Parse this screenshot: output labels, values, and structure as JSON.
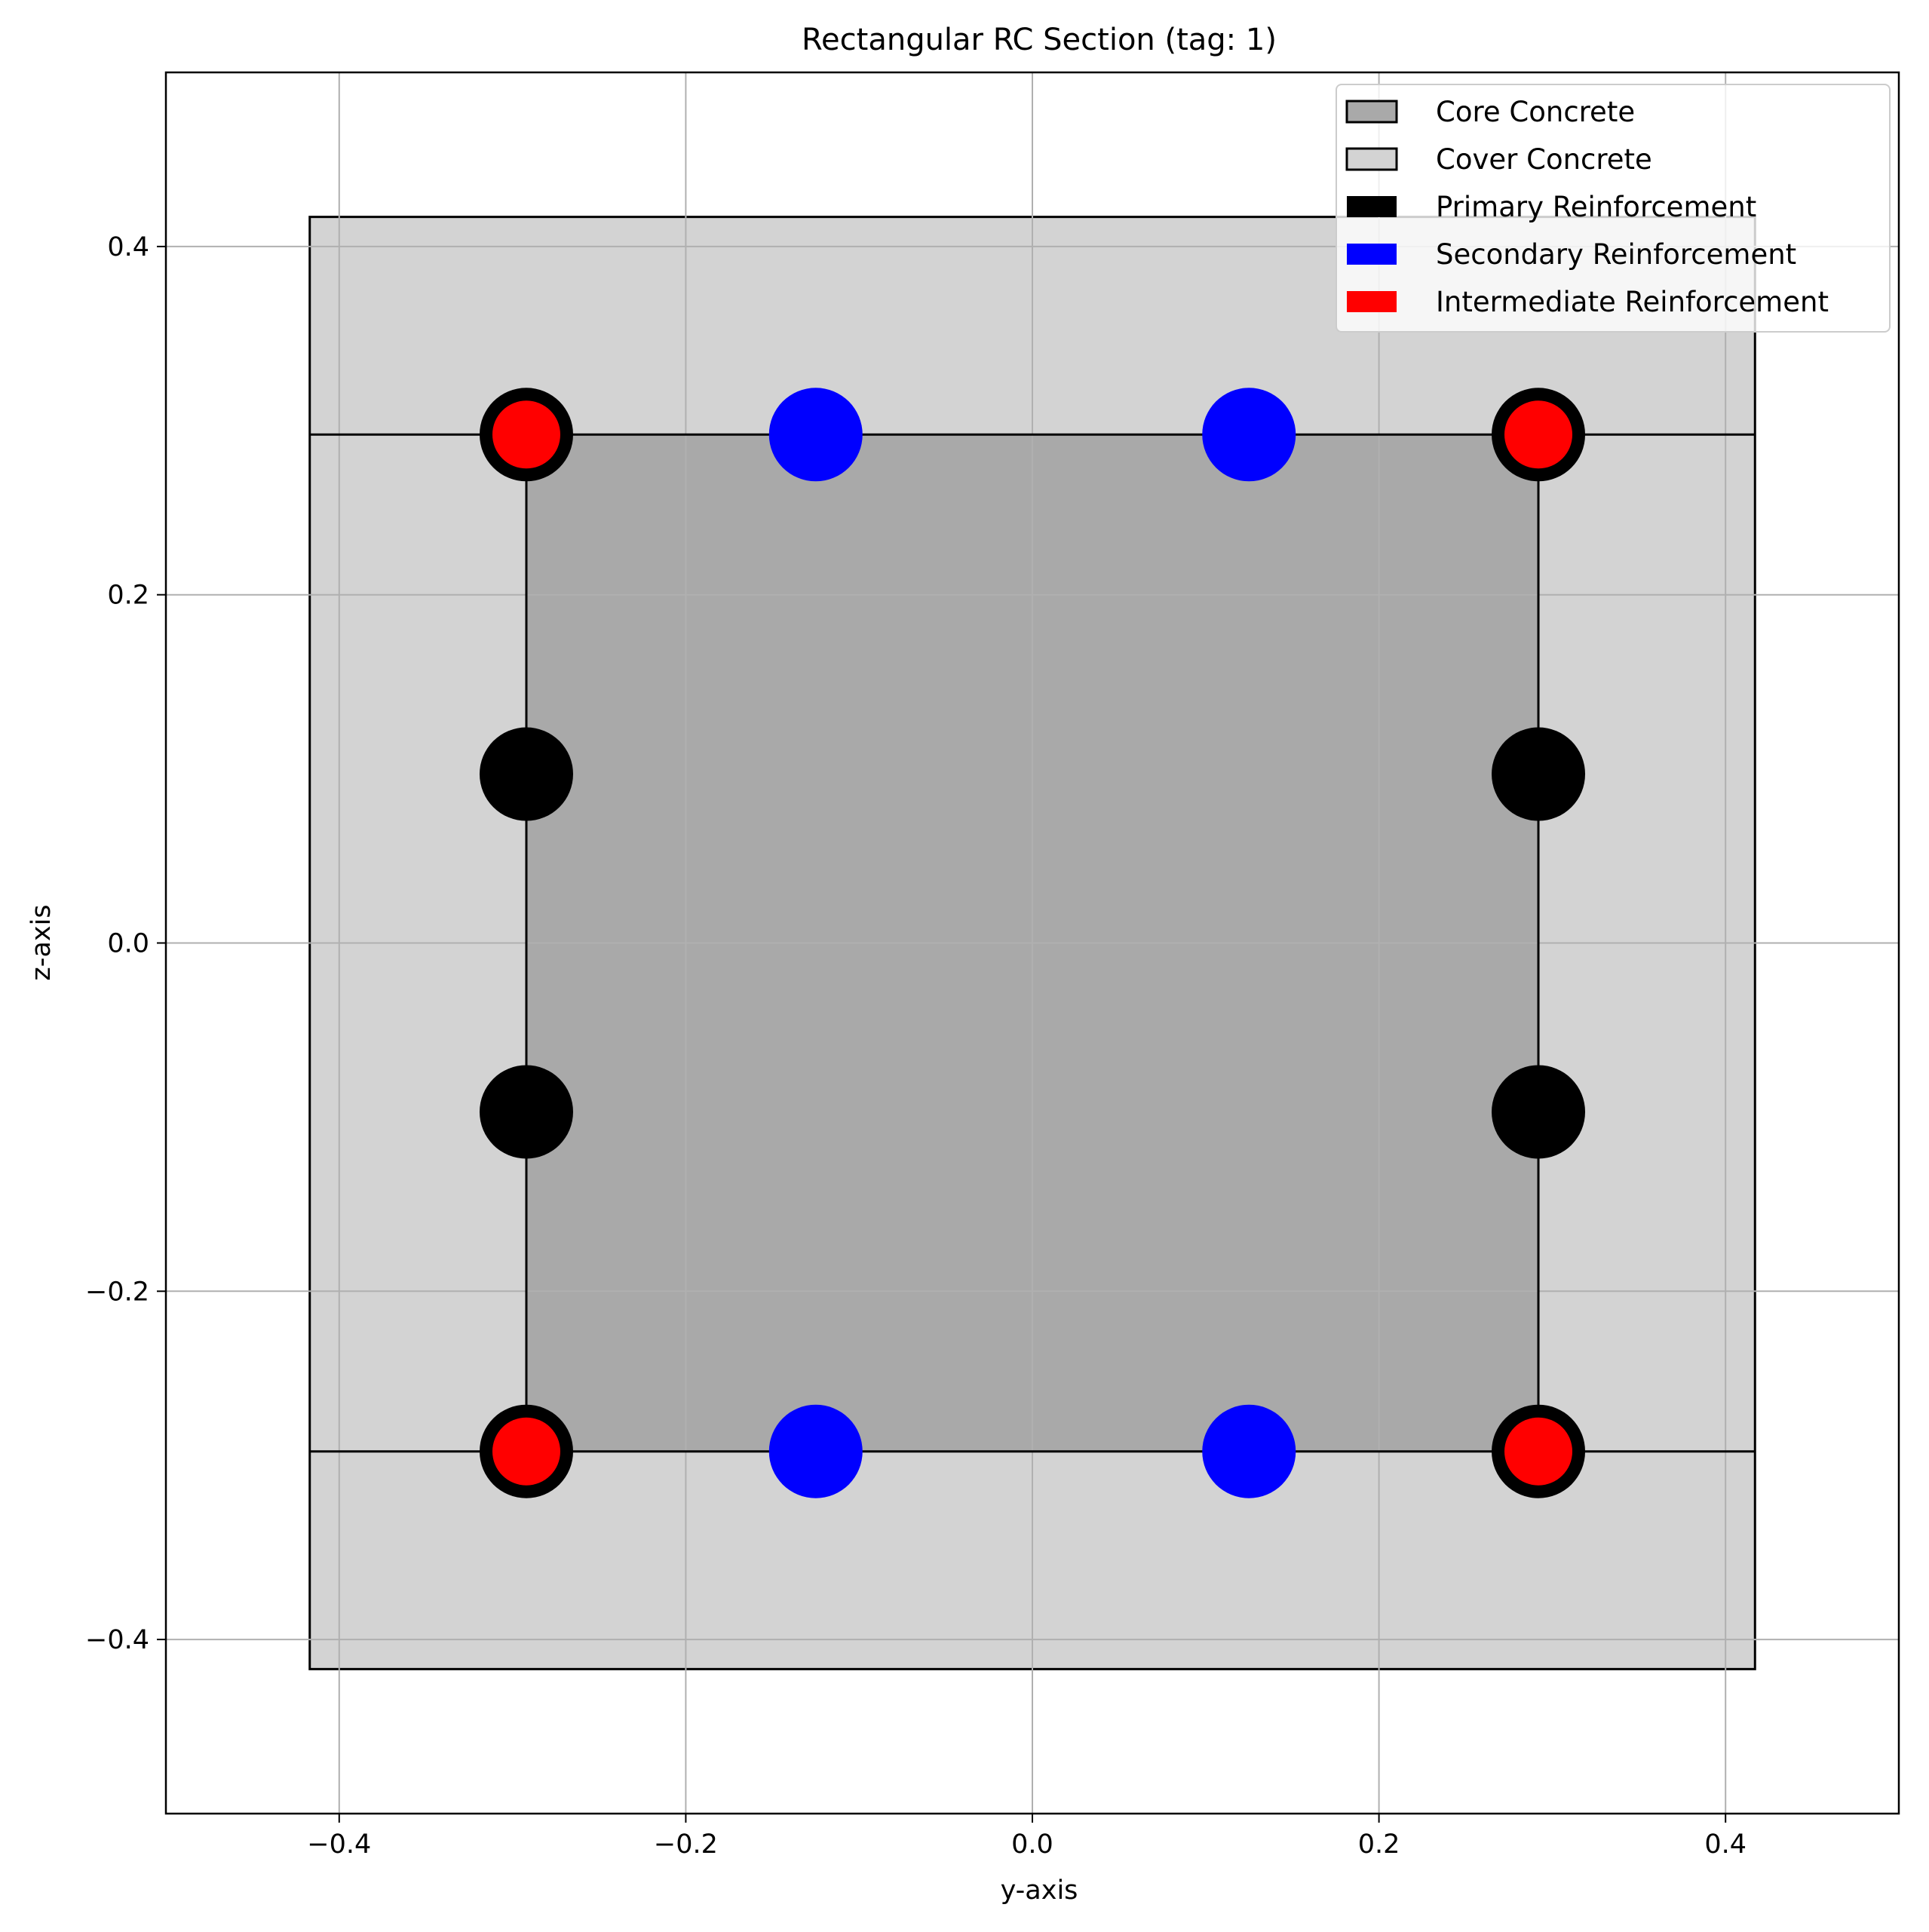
{
  "chart_data": {
    "type": "scatter",
    "title": "Rectangular RC Section (tag: 1)",
    "xlabel": "y-axis",
    "ylabel": "z-axis",
    "xlim": [
      -0.5,
      0.5
    ],
    "ylim": [
      -0.5,
      0.5
    ],
    "grid": true,
    "legend_position": "top-right",
    "x_ticks": [
      {
        "value": -0.4,
        "label": "−0.4"
      },
      {
        "value": -0.2,
        "label": "−0.2"
      },
      {
        "value": 0.0,
        "label": "0.0"
      },
      {
        "value": 0.2,
        "label": "0.2"
      },
      {
        "value": 0.4,
        "label": "0.4"
      }
    ],
    "y_ticks": [
      {
        "value": 0.4,
        "label": "0.4"
      },
      {
        "value": 0.2,
        "label": "0.2"
      },
      {
        "value": 0.0,
        "label": "0.0"
      },
      {
        "value": -0.2,
        "label": "−0.2"
      },
      {
        "value": -0.4,
        "label": "−0.4"
      }
    ],
    "cover_concrete": {
      "name": "Cover Concrete",
      "y": [
        -0.417,
        0.417
      ],
      "z": [
        -0.417,
        0.417
      ],
      "color": "#d3d3d3"
    },
    "core_concrete": {
      "name": "Core Concrete",
      "y": [
        -0.292,
        0.292
      ],
      "z": [
        -0.292,
        0.292
      ],
      "color": "#a9a9a9"
    },
    "layer_lines_z": [
      0.292,
      -0.292
    ],
    "layer_lines_y": [
      -0.292,
      0.292
    ],
    "series": [
      {
        "name": "Primary Reinforcement",
        "color": "#000000",
        "points": [
          [
            -0.292,
            0.292
          ],
          [
            0.292,
            0.292
          ],
          [
            -0.292,
            -0.292
          ],
          [
            0.292,
            -0.292
          ],
          [
            -0.292,
            0.097
          ],
          [
            -0.292,
            -0.097
          ],
          [
            0.292,
            0.097
          ],
          [
            0.292,
            -0.097
          ]
        ]
      },
      {
        "name": "Secondary Reinforcement",
        "color": "#0000ff",
        "points": [
          [
            -0.125,
            0.292
          ],
          [
            0.125,
            0.292
          ],
          [
            -0.125,
            -0.292
          ],
          [
            0.125,
            -0.292
          ]
        ]
      },
      {
        "name": "Intermediate Reinforcement",
        "color": "#ff0000",
        "points": [
          [
            -0.292,
            0.292
          ],
          [
            0.292,
            0.292
          ],
          [
            -0.292,
            -0.292
          ],
          [
            0.292,
            -0.292
          ]
        ]
      }
    ],
    "legend": [
      {
        "label": "Core Concrete",
        "color": "#a9a9a9",
        "outlined": true
      },
      {
        "label": "Cover Concrete",
        "color": "#d3d3d3",
        "outlined": true
      },
      {
        "label": "Primary Reinforcement",
        "color": "#000000",
        "outlined": false
      },
      {
        "label": "Secondary Reinforcement",
        "color": "#0000ff",
        "outlined": false
      },
      {
        "label": "Intermediate Reinforcement",
        "color": "#ff0000",
        "outlined": false
      }
    ]
  }
}
